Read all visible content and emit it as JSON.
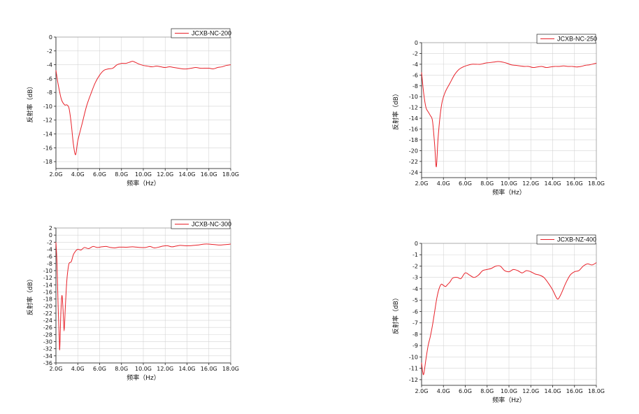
{
  "chart_data": [
    {
      "type": "line",
      "legend": "JCXB-NC-200",
      "color": "#e8222a",
      "xlabel": "频率（Hz）",
      "ylabel": "反射率（dB）",
      "xlim": [
        2,
        18
      ],
      "ylim": [
        -19,
        0
      ],
      "xticks": [
        2,
        4,
        6,
        8,
        10,
        12,
        14,
        16,
        18
      ],
      "xtick_labels": [
        "2.0G",
        "4.0G",
        "6.0G",
        "8.0G",
        "10.0G",
        "12.0G",
        "14.0G",
        "16.0G",
        "18.0G"
      ],
      "yticks": [
        0,
        -2,
        -4,
        -6,
        -8,
        -10,
        -12,
        -14,
        -16,
        -18
      ],
      "ytick_labels": [
        "0",
        "-2",
        "-4",
        "-6",
        "-8",
        "-10",
        "-12",
        "-14",
        "-16",
        "-18"
      ],
      "grid": true,
      "legend_position": "top-right",
      "x": [
        2.0,
        2.2,
        2.5,
        2.8,
        3.0,
        3.2,
        3.4,
        3.6,
        3.8,
        4.0,
        4.4,
        4.8,
        5.2,
        5.6,
        6.0,
        6.4,
        6.8,
        7.2,
        7.6,
        8.0,
        8.4,
        8.8,
        9.0,
        9.2,
        9.6,
        10.0,
        10.4,
        10.8,
        11.2,
        11.6,
        12.0,
        12.4,
        12.8,
        13.2,
        13.6,
        14.0,
        14.4,
        14.8,
        15.2,
        15.6,
        16.0,
        16.4,
        16.8,
        17.2,
        17.6,
        18.0
      ],
      "y": [
        -4.8,
        -6.8,
        -9.0,
        -9.8,
        -9.8,
        -10.3,
        -12.5,
        -15.5,
        -17.0,
        -15.0,
        -12.5,
        -10.0,
        -8.2,
        -6.6,
        -5.5,
        -4.8,
        -4.6,
        -4.5,
        -4.0,
        -3.8,
        -3.8,
        -3.6,
        -3.5,
        -3.6,
        -3.9,
        -4.1,
        -4.2,
        -4.3,
        -4.2,
        -4.3,
        -4.4,
        -4.3,
        -4.4,
        -4.5,
        -4.6,
        -4.6,
        -4.5,
        -4.4,
        -4.5,
        -4.5,
        -4.5,
        -4.6,
        -4.4,
        -4.3,
        -4.1,
        -4.0
      ]
    },
    {
      "type": "line",
      "legend": "JCXB-NC-250",
      "color": "#e8222a",
      "xlabel": "频率（Hz）",
      "ylabel": "反射率（dB）",
      "xlim": [
        2,
        18
      ],
      "ylim": [
        -25,
        0
      ],
      "xticks": [
        2,
        4,
        6,
        8,
        10,
        12,
        14,
        16,
        18
      ],
      "xtick_labels": [
        "2.0G",
        "4.0G",
        "6.0G",
        "8.0G",
        "10.0G",
        "12.0G",
        "14.0G",
        "16.0G",
        "18.0G"
      ],
      "yticks": [
        0,
        -2,
        -4,
        -6,
        -8,
        -10,
        -12,
        -14,
        -16,
        -18,
        -20,
        -22,
        -24
      ],
      "ytick_labels": [
        "0",
        "-2",
        "-4",
        "-6",
        "-8",
        "-10",
        "-12",
        "-14",
        "-16",
        "-18",
        "-20",
        "-22",
        "-24"
      ],
      "grid": true,
      "legend_position": "top-right",
      "x": [
        2.0,
        2.2,
        2.4,
        2.6,
        2.8,
        3.0,
        3.2,
        3.35,
        3.5,
        3.7,
        3.9,
        4.2,
        4.6,
        5.0,
        5.4,
        5.8,
        6.2,
        6.6,
        7.0,
        7.4,
        7.8,
        8.2,
        8.6,
        9.0,
        9.4,
        9.8,
        10.2,
        10.6,
        11.0,
        11.4,
        11.8,
        12.2,
        12.6,
        13.0,
        13.4,
        13.8,
        14.2,
        14.6,
        15.0,
        15.4,
        15.8,
        16.2,
        16.6,
        17.0,
        17.4,
        17.8,
        18.0
      ],
      "y": [
        -5.5,
        -9.5,
        -12.0,
        -12.8,
        -13.5,
        -14.5,
        -19.0,
        -23.0,
        -18.0,
        -13.5,
        -10.8,
        -9.0,
        -7.5,
        -6.0,
        -5.0,
        -4.5,
        -4.2,
        -4.0,
        -4.0,
        -4.0,
        -3.8,
        -3.7,
        -3.6,
        -3.5,
        -3.6,
        -3.8,
        -4.1,
        -4.2,
        -4.3,
        -4.4,
        -4.4,
        -4.6,
        -4.5,
        -4.4,
        -4.6,
        -4.5,
        -4.4,
        -4.4,
        -4.3,
        -4.4,
        -4.4,
        -4.5,
        -4.4,
        -4.2,
        -4.1,
        -3.9,
        -3.8
      ]
    },
    {
      "type": "line",
      "legend": "JCXB-NC-300",
      "color": "#e8222a",
      "xlabel": "频率（Hz）",
      "ylabel": "反射率（dB）",
      "xlim": [
        2,
        18
      ],
      "ylim": [
        -36,
        2
      ],
      "xticks": [
        2,
        4,
        6,
        8,
        10,
        12,
        14,
        16,
        18
      ],
      "xtick_labels": [
        "2.0G",
        "4.0G",
        "6.0G",
        "8.0G",
        "10.0G",
        "12.0G",
        "14.0G",
        "16.0G",
        "18.0G"
      ],
      "yticks": [
        2,
        0,
        -2,
        -4,
        -6,
        -8,
        -10,
        -12,
        -14,
        -16,
        -18,
        -20,
        -22,
        -24,
        -26,
        -28,
        -30,
        -32,
        -34,
        -36
      ],
      "ytick_labels": [
        "2",
        "0",
        "-2",
        "-4",
        "-6",
        "-8",
        "-10",
        "-12",
        "-14",
        "-16",
        "-18",
        "-20",
        "-22",
        "-24",
        "-26",
        "-28",
        "-30",
        "-32",
        "-34",
        "-36"
      ],
      "grid": true,
      "legend_position": "top-right",
      "x": [
        2.0,
        2.1,
        2.2,
        2.3,
        2.35,
        2.45,
        2.55,
        2.65,
        2.75,
        2.85,
        2.95,
        3.05,
        3.2,
        3.4,
        3.6,
        3.8,
        4.0,
        4.3,
        4.6,
        5.0,
        5.4,
        5.8,
        6.2,
        6.6,
        7.0,
        7.4,
        7.8,
        8.2,
        8.6,
        9.0,
        9.4,
        9.8,
        10.2,
        10.6,
        11.0,
        11.4,
        11.8,
        12.2,
        12.6,
        13.0,
        13.4,
        13.8,
        14.2,
        14.6,
        15.0,
        15.4,
        15.8,
        16.2,
        16.6,
        17.0,
        17.4,
        17.8,
        18.0
      ],
      "y": [
        -2.0,
        -8.0,
        -20.0,
        -29.0,
        -32.0,
        -22.0,
        -17.0,
        -21.0,
        -27.0,
        -21.0,
        -15.0,
        -11.0,
        -8.0,
        -7.5,
        -5.5,
        -4.5,
        -4.0,
        -4.2,
        -3.5,
        -3.8,
        -3.2,
        -3.5,
        -3.3,
        -3.2,
        -3.5,
        -3.6,
        -3.4,
        -3.4,
        -3.4,
        -3.3,
        -3.4,
        -3.5,
        -3.5,
        -3.2,
        -3.6,
        -3.4,
        -3.1,
        -3.0,
        -3.3,
        -3.1,
        -2.9,
        -3.0,
        -3.0,
        -2.9,
        -2.8,
        -2.6,
        -2.5,
        -2.6,
        -2.7,
        -2.8,
        -2.7,
        -2.6,
        -2.5
      ]
    },
    {
      "type": "line",
      "legend": "JCXB-NZ-400",
      "color": "#e8222a",
      "xlabel": "频率（Hz）",
      "ylabel": "反射率（dB）",
      "xlim": [
        2,
        18
      ],
      "ylim": [
        -12.5,
        0
      ],
      "xticks": [
        2,
        4,
        6,
        8,
        10,
        12,
        14,
        16,
        18
      ],
      "xtick_labels": [
        "2.0G",
        "4.0G",
        "6.0G",
        "8.0G",
        "10.0G",
        "12.0G",
        "14.0G",
        "16.0G",
        "18.0G"
      ],
      "yticks": [
        0,
        -1,
        -2,
        -3,
        -4,
        -5,
        -6,
        -7,
        -8,
        -9,
        -10,
        -11,
        -12
      ],
      "ytick_labels": [
        "0",
        "-1",
        "-2",
        "-3",
        "-4",
        "-5",
        "-6",
        "-7",
        "-8",
        "-9",
        "-10",
        "-11",
        "-12"
      ],
      "grid": true,
      "legend_position": "top-right",
      "x": [
        2.0,
        2.1,
        2.2,
        2.4,
        2.6,
        2.8,
        3.0,
        3.2,
        3.4,
        3.6,
        3.8,
        4.0,
        4.2,
        4.4,
        4.6,
        4.8,
        5.0,
        5.3,
        5.6,
        6.0,
        6.4,
        6.8,
        7.2,
        7.6,
        8.0,
        8.4,
        8.8,
        9.2,
        9.6,
        10.0,
        10.4,
        10.8,
        11.2,
        11.6,
        12.0,
        12.4,
        12.8,
        13.2,
        13.6,
        14.0,
        14.3,
        14.5,
        14.8,
        15.2,
        15.6,
        16.0,
        16.4,
        16.8,
        17.2,
        17.6,
        18.0
      ],
      "y": [
        -10.5,
        -11.3,
        -11.5,
        -10.2,
        -9.0,
        -8.2,
        -7.2,
        -6.0,
        -4.8,
        -4.0,
        -3.6,
        -3.7,
        -3.8,
        -3.6,
        -3.4,
        -3.1,
        -3.0,
        -3.0,
        -3.1,
        -2.6,
        -2.8,
        -3.0,
        -2.8,
        -2.4,
        -2.3,
        -2.2,
        -2.0,
        -2.0,
        -2.4,
        -2.5,
        -2.3,
        -2.4,
        -2.6,
        -2.4,
        -2.5,
        -2.7,
        -2.8,
        -3.0,
        -3.5,
        -4.1,
        -4.7,
        -4.9,
        -4.4,
        -3.5,
        -2.8,
        -2.5,
        -2.4,
        -2.0,
        -1.8,
        -1.9,
        -1.7
      ]
    }
  ]
}
